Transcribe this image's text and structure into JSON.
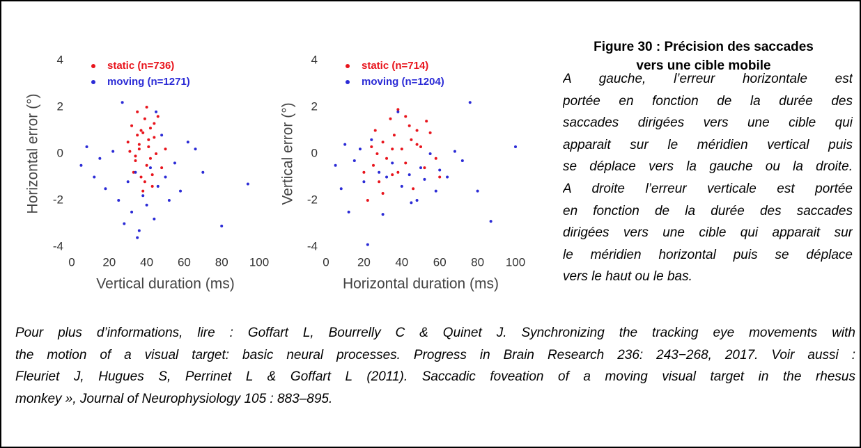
{
  "chart_data": [
    {
      "type": "scatter",
      "x_label": "Vertical duration (ms)",
      "y_label": "Horizontal error (°)",
      "xlim": [
        0,
        100
      ],
      "xticks": [
        0,
        20,
        40,
        60,
        80,
        100
      ],
      "ylim": [
        -4,
        4
      ],
      "yticks": [
        -4,
        -2,
        0,
        2,
        4
      ],
      "series": [
        {
          "name": "static (n=736)",
          "color": "#e8141c",
          "x": [
            30,
            32,
            34,
            35,
            36,
            37,
            38,
            39,
            40,
            41,
            42,
            43,
            44,
            45,
            46,
            33,
            38,
            40,
            36,
            42,
            31,
            35,
            39,
            44,
            48,
            37,
            41,
            34,
            43,
            50
          ],
          "values": [
            0.5,
            1.2,
            -0.3,
            1.8,
            0.2,
            -1.0,
            0.9,
            1.5,
            -0.5,
            0.3,
            1.1,
            -1.4,
            0.7,
            0.0,
            1.6,
            -0.8,
            -1.6,
            2.0,
            0.4,
            -0.2,
            0.1,
            0.8,
            -1.2,
            1.3,
            -0.6,
            1.0,
            0.6,
            -0.1,
            -0.9,
            0.2
          ]
        },
        {
          "name": "moving (n=1271)",
          "color": "#2b2bd6",
          "x": [
            5,
            8,
            12,
            15,
            18,
            22,
            25,
            28,
            30,
            32,
            34,
            36,
            38,
            40,
            42,
            44,
            46,
            48,
            50,
            52,
            55,
            58,
            62,
            66,
            70,
            80,
            94,
            27,
            35,
            45
          ],
          "values": [
            -0.5,
            0.3,
            -1.0,
            -0.2,
            -1.5,
            0.1,
            -2.0,
            -3.0,
            -1.2,
            -2.5,
            -0.8,
            -3.3,
            -1.8,
            -2.2,
            -0.6,
            -2.8,
            -1.4,
            0.8,
            -1.0,
            -2.0,
            -0.4,
            -1.6,
            0.5,
            0.2,
            -0.8,
            -3.1,
            -1.3,
            2.2,
            -3.6,
            1.8
          ]
        }
      ]
    },
    {
      "type": "scatter",
      "x_label": "Horizontal duration (ms)",
      "y_label": "Vertical error (°)",
      "xlim": [
        0,
        100
      ],
      "xticks": [
        0,
        20,
        40,
        60,
        80,
        100
      ],
      "ylim": [
        -4,
        4
      ],
      "yticks": [
        -4,
        -2,
        0,
        2,
        4
      ],
      "series": [
        {
          "name": "static (n=714)",
          "color": "#e8141c",
          "x": [
            20,
            22,
            24,
            25,
            26,
            28,
            30,
            32,
            34,
            35,
            36,
            38,
            40,
            42,
            44,
            45,
            46,
            48,
            50,
            52,
            55,
            58,
            60,
            30,
            38,
            42,
            48,
            27,
            35,
            53
          ],
          "values": [
            -0.8,
            -2.0,
            0.3,
            -0.5,
            1.0,
            -1.2,
            0.5,
            -0.2,
            1.5,
            -0.9,
            0.8,
            1.9,
            0.2,
            -0.4,
            1.2,
            0.6,
            -1.5,
            1.0,
            0.3,
            -0.6,
            0.9,
            -0.2,
            -1.0,
            -1.7,
            -0.8,
            1.6,
            0.4,
            0.0,
            0.2,
            1.4
          ]
        },
        {
          "name": "moving (n=1204)",
          "color": "#2b2bd6",
          "x": [
            5,
            8,
            10,
            12,
            15,
            18,
            20,
            24,
            28,
            30,
            32,
            35,
            38,
            40,
            44,
            48,
            50,
            52,
            55,
            58,
            60,
            64,
            68,
            72,
            76,
            80,
            87,
            100,
            22,
            45
          ],
          "values": [
            -0.5,
            -1.5,
            0.4,
            -2.5,
            -0.3,
            0.2,
            -1.2,
            0.6,
            -0.8,
            -2.6,
            -1.0,
            -0.4,
            1.8,
            -1.4,
            -0.9,
            -2.0,
            -0.6,
            -1.1,
            0.0,
            -1.6,
            -0.7,
            -1.0,
            0.1,
            -0.3,
            2.2,
            -1.6,
            -2.9,
            0.3,
            -3.9,
            -2.1
          ]
        }
      ]
    }
  ],
  "figure": {
    "title_lines": [
      "Figure 30 : Précision des saccades",
      "vers une cible mobile"
    ],
    "caption_lines": [
      "A gauche, l’erreur horizontale est",
      "portée en fonction de la durée des",
      "saccades dirigées vers une cible qui",
      "apparait sur le méridien vertical puis",
      "se déplace vers la gauche ou la droite.",
      "A droite l’erreur verticale est portée",
      "en fonction de la durée des saccades",
      "dirigées vers une cible qui apparait sur",
      "le méridien horizontal puis se déplace",
      "vers le haut ou le bas."
    ]
  },
  "reference_lines": [
    "Pour plus d’informations, lire : Goffart L, Bourrelly C & Quinet J. Synchronizing the tracking eye movements with",
    "the motion of a visual target: basic neural processes. Progress in Brain Research 236: 243−268, 2017. Voir aussi :",
    "Fleuriet J, Hugues S, Perrinet L & Goffart L (2011). Saccadic foveation of a moving visual target in the rhesus",
    "monkey », Journal of Neurophysiology 105 : 883–895."
  ]
}
